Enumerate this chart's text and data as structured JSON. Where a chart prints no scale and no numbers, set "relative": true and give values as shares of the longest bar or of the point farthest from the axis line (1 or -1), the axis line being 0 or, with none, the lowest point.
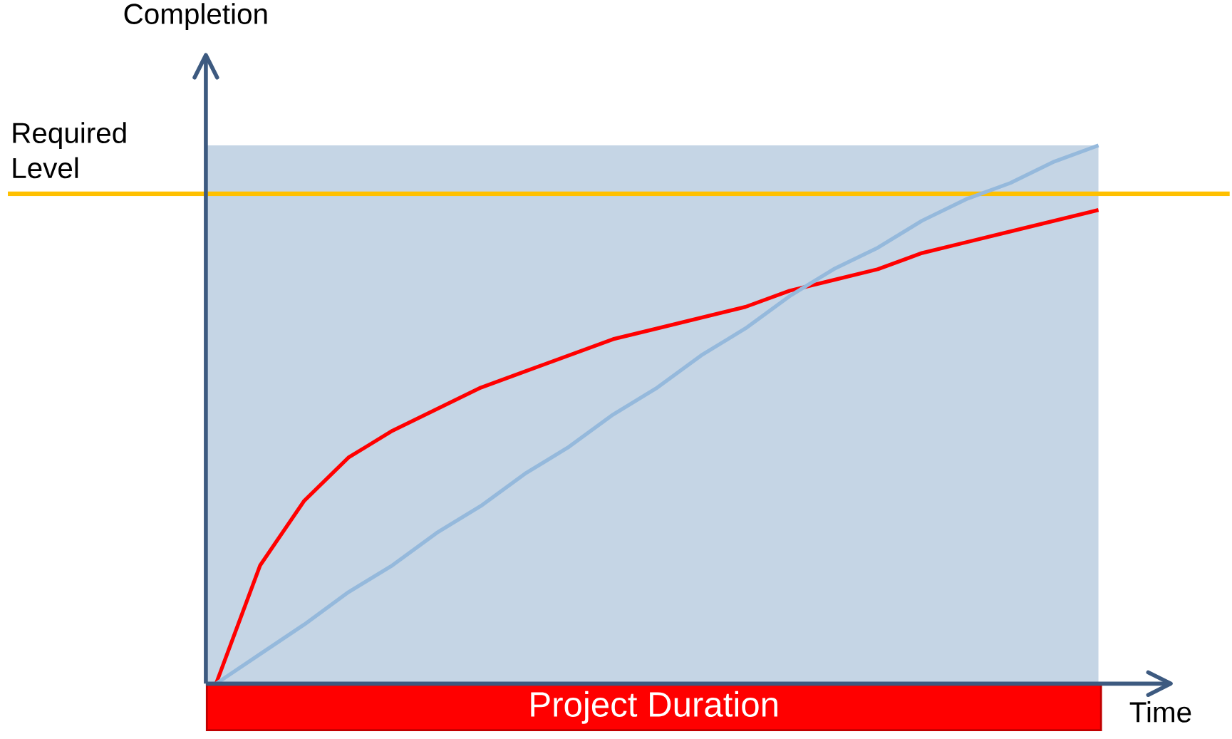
{
  "chart_data": {
    "type": "line",
    "relative": true,
    "xlabel": "Time",
    "ylabel": "Completion",
    "categories": [
      null,
      null,
      null,
      null,
      null,
      null,
      null,
      null,
      null,
      null,
      null,
      null,
      null,
      null,
      null,
      null,
      null,
      null,
      null,
      null,
      null
    ],
    "series": [
      {
        "color": "#ff0000",
        "values": [
          0,
          0.22,
          0.34,
          0.42,
          0.47,
          0.51,
          0.55,
          0.58,
          0.61,
          0.64,
          0.66,
          0.68,
          0.7,
          0.73,
          0.75,
          0.77,
          0.8,
          0.82,
          0.84,
          0.86,
          0.88
        ]
      },
      {
        "color": "#95b9dc",
        "values": [
          0,
          0.055,
          0.11,
          0.17,
          0.22,
          0.28,
          0.33,
          0.39,
          0.44,
          0.5,
          0.55,
          0.61,
          0.66,
          0.72,
          0.77,
          0.81,
          0.86,
          0.9,
          0.93,
          0.97,
          1.0
        ]
      }
    ],
    "ref_lines": [
      {
        "axis": "y",
        "value": 0.91,
        "label": "Required Level",
        "color": "#ffc000"
      }
    ],
    "bands": [
      {
        "axis": "y",
        "from": 0,
        "to": 1,
        "color": "#c5d5e5"
      }
    ],
    "annotations": [
      "Project Duration"
    ]
  }
}
